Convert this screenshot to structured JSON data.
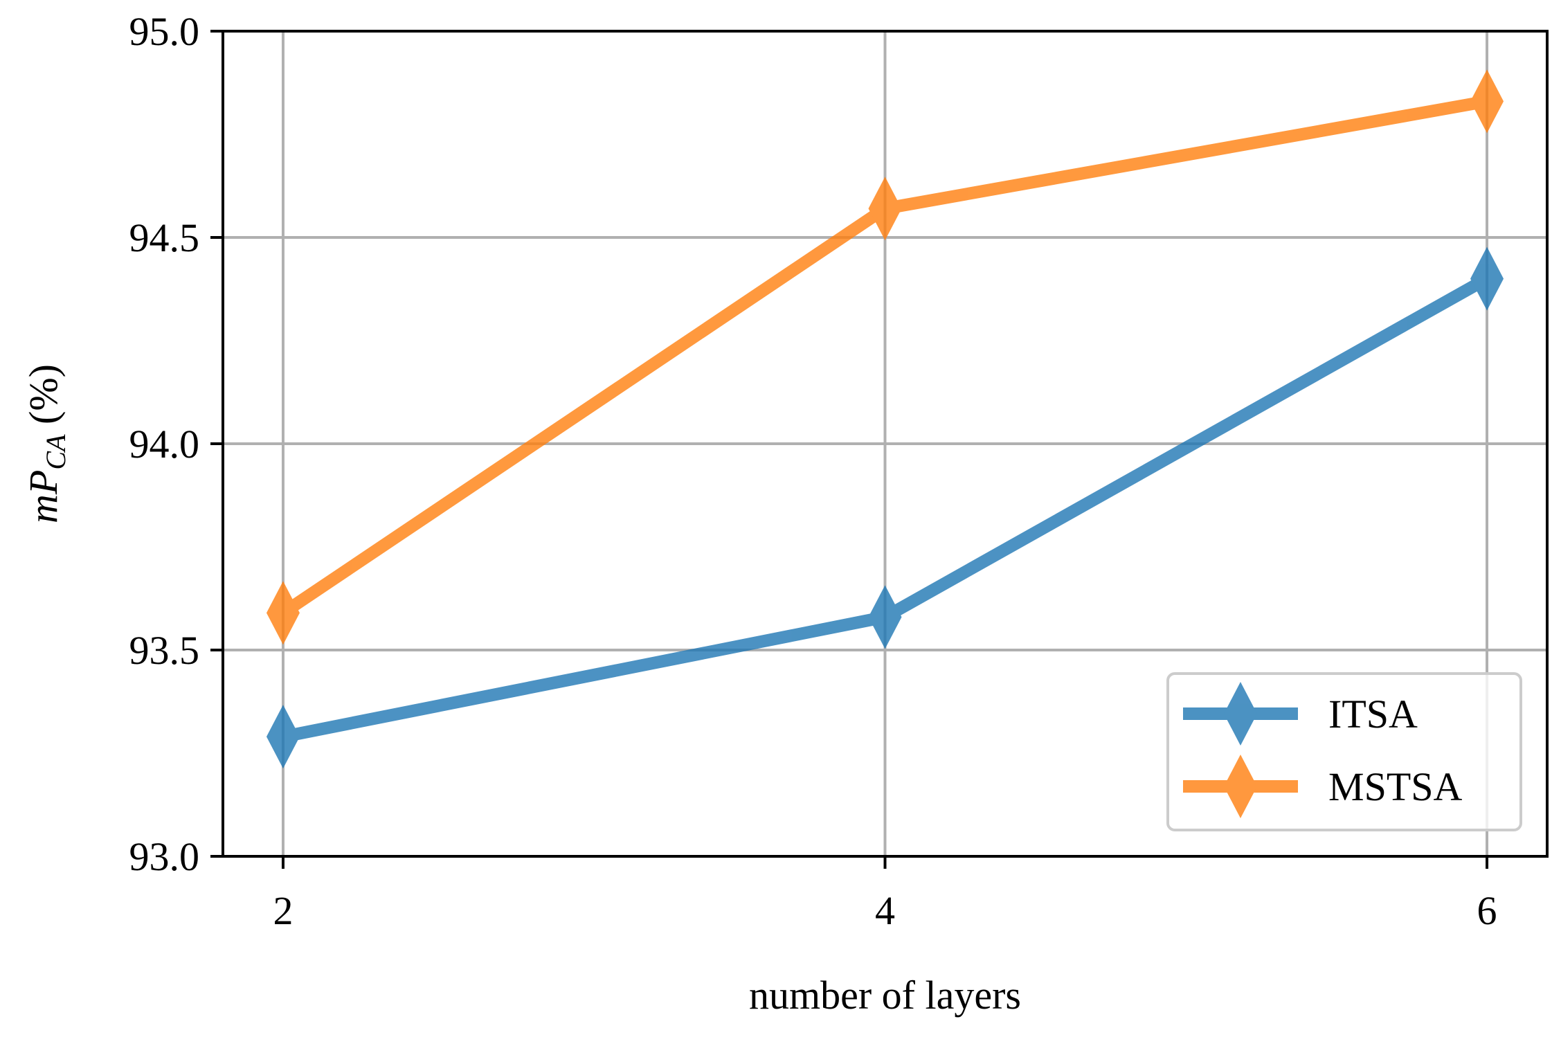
{
  "chart_data": {
    "type": "line",
    "x": [
      2,
      4,
      6
    ],
    "series": [
      {
        "name": "ITSA",
        "values": [
          93.29,
          93.58,
          94.4
        ],
        "color": "#1f77b4"
      },
      {
        "name": "MSTSA",
        "values": [
          93.59,
          94.57,
          94.83
        ],
        "color": "#ff7f0e"
      }
    ],
    "xlabel": "number of layers",
    "ylabel_main": "mP",
    "ylabel_sub": "CA",
    "ylabel_suffix": " (%)",
    "xlim": [
      1.8,
      6.2
    ],
    "ylim": [
      93.0,
      95.0
    ],
    "xticks": [
      2,
      4,
      6
    ],
    "xtick_labels": [
      "2",
      "4",
      "6"
    ],
    "yticks": [
      93.0,
      93.5,
      94.0,
      94.5,
      95.0
    ],
    "ytick_labels": [
      "93.0",
      "93.5",
      "94.0",
      "94.5",
      "95.0"
    ],
    "grid": true,
    "marker": "thin-diamond",
    "legend_position": "lower-right"
  }
}
